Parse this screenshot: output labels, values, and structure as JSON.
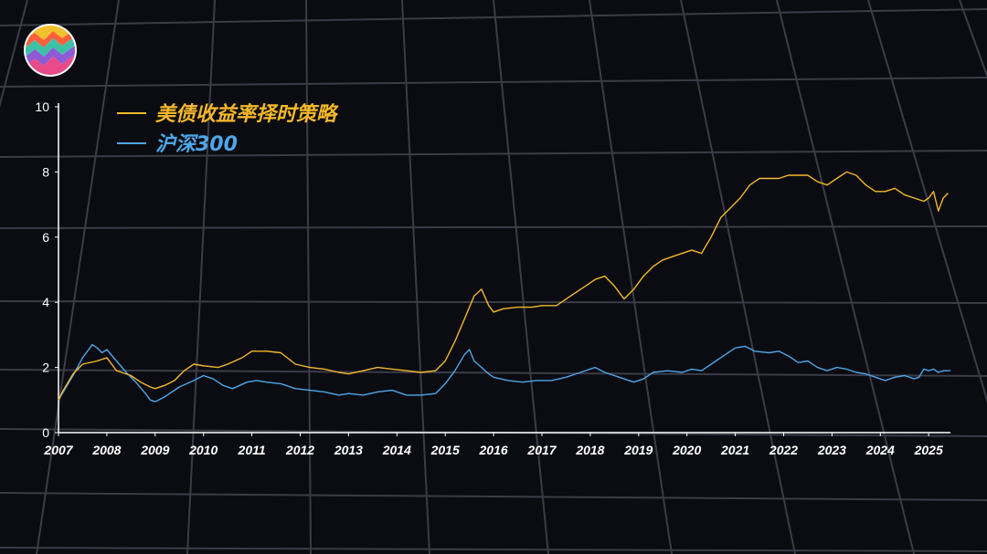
{
  "chart_data": {
    "type": "line",
    "x_range": [
      2007.0,
      2025.45
    ],
    "ylim": [
      0,
      10
    ],
    "yticks": [
      0,
      2,
      4,
      6,
      8,
      10
    ],
    "xticks": [
      "2007",
      "2008",
      "2009",
      "2010",
      "2011",
      "2012",
      "2013",
      "2014",
      "2015",
      "2016",
      "2017",
      "2018",
      "2019",
      "2020",
      "2021",
      "2022",
      "2023",
      "2024",
      "2025"
    ],
    "legend_position": "top-left",
    "series": [
      {
        "name": "美债收益率择时策略",
        "color": "#f5b82a",
        "points": [
          [
            2007.0,
            1.0
          ],
          [
            2007.1,
            1.3
          ],
          [
            2007.3,
            1.8
          ],
          [
            2007.5,
            2.1
          ],
          [
            2007.8,
            2.2
          ],
          [
            2008.0,
            2.3
          ],
          [
            2008.1,
            2.1
          ],
          [
            2008.2,
            1.9
          ],
          [
            2008.3,
            1.85
          ],
          [
            2008.5,
            1.75
          ],
          [
            2008.7,
            1.55
          ],
          [
            2008.9,
            1.4
          ],
          [
            2009.0,
            1.35
          ],
          [
            2009.2,
            1.45
          ],
          [
            2009.4,
            1.6
          ],
          [
            2009.6,
            1.9
          ],
          [
            2009.8,
            2.1
          ],
          [
            2010.0,
            2.05
          ],
          [
            2010.3,
            2.0
          ],
          [
            2010.5,
            2.1
          ],
          [
            2010.8,
            2.3
          ],
          [
            2011.0,
            2.5
          ],
          [
            2011.3,
            2.5
          ],
          [
            2011.6,
            2.45
          ],
          [
            2011.9,
            2.1
          ],
          [
            2012.2,
            2.0
          ],
          [
            2012.5,
            1.95
          ],
          [
            2012.8,
            1.85
          ],
          [
            2013.0,
            1.8
          ],
          [
            2013.3,
            1.9
          ],
          [
            2013.6,
            2.0
          ],
          [
            2013.9,
            1.95
          ],
          [
            2014.2,
            1.9
          ],
          [
            2014.5,
            1.85
          ],
          [
            2014.8,
            1.9
          ],
          [
            2015.0,
            2.2
          ],
          [
            2015.2,
            2.8
          ],
          [
            2015.4,
            3.5
          ],
          [
            2015.6,
            4.2
          ],
          [
            2015.75,
            4.4
          ],
          [
            2015.9,
            3.9
          ],
          [
            2016.0,
            3.7
          ],
          [
            2016.2,
            3.8
          ],
          [
            2016.5,
            3.85
          ],
          [
            2016.8,
            3.85
          ],
          [
            2017.0,
            3.9
          ],
          [
            2017.3,
            3.9
          ],
          [
            2017.6,
            4.2
          ],
          [
            2017.9,
            4.5
          ],
          [
            2018.1,
            4.7
          ],
          [
            2018.3,
            4.8
          ],
          [
            2018.5,
            4.5
          ],
          [
            2018.7,
            4.1
          ],
          [
            2018.9,
            4.4
          ],
          [
            2019.1,
            4.8
          ],
          [
            2019.3,
            5.1
          ],
          [
            2019.5,
            5.3
          ],
          [
            2019.7,
            5.4
          ],
          [
            2019.9,
            5.5
          ],
          [
            2020.1,
            5.6
          ],
          [
            2020.3,
            5.5
          ],
          [
            2020.5,
            6.0
          ],
          [
            2020.7,
            6.6
          ],
          [
            2020.9,
            6.9
          ],
          [
            2021.1,
            7.2
          ],
          [
            2021.3,
            7.6
          ],
          [
            2021.5,
            7.8
          ],
          [
            2021.7,
            7.8
          ],
          [
            2021.9,
            7.8
          ],
          [
            2022.1,
            7.9
          ],
          [
            2022.3,
            7.9
          ],
          [
            2022.5,
            7.9
          ],
          [
            2022.7,
            7.7
          ],
          [
            2022.9,
            7.6
          ],
          [
            2023.1,
            7.8
          ],
          [
            2023.3,
            8.0
          ],
          [
            2023.5,
            7.9
          ],
          [
            2023.7,
            7.6
          ],
          [
            2023.9,
            7.4
          ],
          [
            2024.1,
            7.4
          ],
          [
            2024.3,
            7.5
          ],
          [
            2024.5,
            7.3
          ],
          [
            2024.7,
            7.2
          ],
          [
            2024.9,
            7.1
          ],
          [
            2025.0,
            7.2
          ],
          [
            2025.1,
            7.4
          ],
          [
            2025.2,
            6.8
          ],
          [
            2025.3,
            7.2
          ],
          [
            2025.4,
            7.35
          ]
        ]
      },
      {
        "name": "沪深300",
        "color": "#4ea6e8",
        "points": [
          [
            2007.0,
            1.0
          ],
          [
            2007.1,
            1.25
          ],
          [
            2007.3,
            1.75
          ],
          [
            2007.5,
            2.3
          ],
          [
            2007.7,
            2.7
          ],
          [
            2007.8,
            2.6
          ],
          [
            2007.9,
            2.45
          ],
          [
            2008.0,
            2.55
          ],
          [
            2008.2,
            2.2
          ],
          [
            2008.4,
            1.85
          ],
          [
            2008.6,
            1.55
          ],
          [
            2008.8,
            1.2
          ],
          [
            2008.9,
            1.0
          ],
          [
            2009.0,
            0.95
          ],
          [
            2009.2,
            1.1
          ],
          [
            2009.5,
            1.4
          ],
          [
            2009.8,
            1.6
          ],
          [
            2010.0,
            1.75
          ],
          [
            2010.2,
            1.65
          ],
          [
            2010.4,
            1.45
          ],
          [
            2010.6,
            1.35
          ],
          [
            2010.9,
            1.55
          ],
          [
            2011.1,
            1.6
          ],
          [
            2011.3,
            1.55
          ],
          [
            2011.6,
            1.5
          ],
          [
            2011.9,
            1.35
          ],
          [
            2012.2,
            1.3
          ],
          [
            2012.5,
            1.25
          ],
          [
            2012.8,
            1.15
          ],
          [
            2013.0,
            1.2
          ],
          [
            2013.3,
            1.15
          ],
          [
            2013.6,
            1.25
          ],
          [
            2013.9,
            1.3
          ],
          [
            2014.2,
            1.15
          ],
          [
            2014.5,
            1.15
          ],
          [
            2014.8,
            1.2
          ],
          [
            2015.0,
            1.5
          ],
          [
            2015.2,
            1.9
          ],
          [
            2015.4,
            2.4
          ],
          [
            2015.5,
            2.55
          ],
          [
            2015.6,
            2.2
          ],
          [
            2015.75,
            2.0
          ],
          [
            2015.9,
            1.8
          ],
          [
            2016.0,
            1.7
          ],
          [
            2016.3,
            1.6
          ],
          [
            2016.6,
            1.55
          ],
          [
            2016.9,
            1.6
          ],
          [
            2017.2,
            1.6
          ],
          [
            2017.5,
            1.7
          ],
          [
            2017.8,
            1.85
          ],
          [
            2018.1,
            2.0
          ],
          [
            2018.3,
            1.85
          ],
          [
            2018.6,
            1.7
          ],
          [
            2018.9,
            1.55
          ],
          [
            2019.1,
            1.65
          ],
          [
            2019.3,
            1.85
          ],
          [
            2019.6,
            1.9
          ],
          [
            2019.9,
            1.85
          ],
          [
            2020.1,
            1.95
          ],
          [
            2020.3,
            1.9
          ],
          [
            2020.6,
            2.2
          ],
          [
            2020.8,
            2.4
          ],
          [
            2021.0,
            2.6
          ],
          [
            2021.2,
            2.65
          ],
          [
            2021.4,
            2.5
          ],
          [
            2021.7,
            2.45
          ],
          [
            2021.9,
            2.5
          ],
          [
            2022.1,
            2.35
          ],
          [
            2022.3,
            2.15
          ],
          [
            2022.5,
            2.2
          ],
          [
            2022.7,
            2.0
          ],
          [
            2022.9,
            1.9
          ],
          [
            2023.1,
            2.0
          ],
          [
            2023.3,
            1.95
          ],
          [
            2023.5,
            1.85
          ],
          [
            2023.7,
            1.8
          ],
          [
            2023.9,
            1.7
          ],
          [
            2024.1,
            1.6
          ],
          [
            2024.3,
            1.7
          ],
          [
            2024.5,
            1.75
          ],
          [
            2024.7,
            1.65
          ],
          [
            2024.8,
            1.7
          ],
          [
            2024.9,
            1.95
          ],
          [
            2025.0,
            1.9
          ],
          [
            2025.1,
            1.95
          ],
          [
            2025.2,
            1.85
          ],
          [
            2025.3,
            1.9
          ],
          [
            2025.45,
            1.9
          ]
        ]
      }
    ]
  }
}
